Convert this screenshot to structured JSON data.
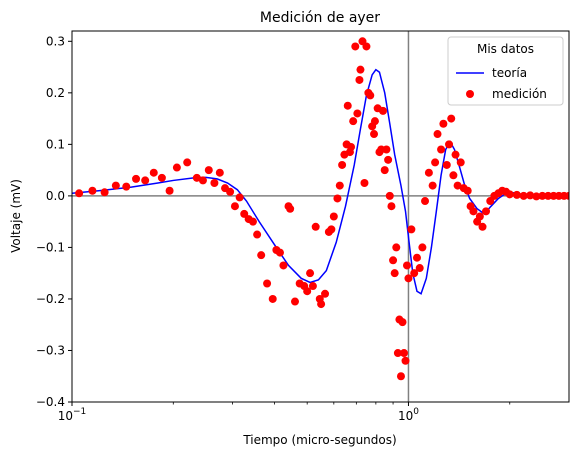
{
  "chart_data": {
    "type": "line",
    "title": "Medición de ayer",
    "xlabel": "Tiempo (micro-segundos)",
    "ylabel": "Voltaje (mV)",
    "x_scale": "log",
    "xlim": [
      0.1,
      3.0
    ],
    "ylim": [
      -0.4,
      0.32
    ],
    "grid": false,
    "x_ticks": [
      {
        "value": 0.1,
        "base": "10",
        "exp": "−1"
      },
      {
        "value": 1.0,
        "base": "10",
        "exp": "0"
      }
    ],
    "y_ticks": [
      {
        "value": 0.3,
        "label": "0.3"
      },
      {
        "value": 0.2,
        "label": "0.2"
      },
      {
        "value": 0.1,
        "label": "0.1"
      },
      {
        "value": 0.0,
        "label": "0.0"
      },
      {
        "value": -0.1,
        "label": "−0.1"
      },
      {
        "value": -0.2,
        "label": "−0.2"
      },
      {
        "value": -0.3,
        "label": "−0.3"
      },
      {
        "value": -0.4,
        "label": "−0.4"
      }
    ],
    "reference_lines": {
      "horizontal_y": 0.0,
      "vertical_x": 1.0,
      "color": "#808080"
    },
    "legend": {
      "title": "Mis datos",
      "placement": "top-right"
    },
    "series": [
      {
        "name": "teoría",
        "kind": "line",
        "color": "#0000ff",
        "points": [
          [
            0.1,
            0.005
          ],
          [
            0.12,
            0.01
          ],
          [
            0.15,
            0.017
          ],
          [
            0.18,
            0.025
          ],
          [
            0.2,
            0.03
          ],
          [
            0.23,
            0.035
          ],
          [
            0.25,
            0.036
          ],
          [
            0.27,
            0.033
          ],
          [
            0.29,
            0.025
          ],
          [
            0.31,
            0.012
          ],
          [
            0.33,
            -0.01
          ],
          [
            0.36,
            -0.05
          ],
          [
            0.4,
            -0.095
          ],
          [
            0.44,
            -0.135
          ],
          [
            0.48,
            -0.16
          ],
          [
            0.51,
            -0.168
          ],
          [
            0.54,
            -0.163
          ],
          [
            0.57,
            -0.145
          ],
          [
            0.61,
            -0.09
          ],
          [
            0.65,
            -0.02
          ],
          [
            0.69,
            0.06
          ],
          [
            0.72,
            0.13
          ],
          [
            0.75,
            0.195
          ],
          [
            0.78,
            0.235
          ],
          [
            0.8,
            0.245
          ],
          [
            0.82,
            0.24
          ],
          [
            0.85,
            0.2
          ],
          [
            0.88,
            0.14
          ],
          [
            0.91,
            0.08
          ],
          [
            0.95,
            0.02
          ],
          [
            0.98,
            -0.03
          ],
          [
            1.0,
            -0.08
          ],
          [
            1.03,
            -0.15
          ],
          [
            1.06,
            -0.185
          ],
          [
            1.09,
            -0.19
          ],
          [
            1.13,
            -0.16
          ],
          [
            1.17,
            -0.1
          ],
          [
            1.21,
            -0.03
          ],
          [
            1.25,
            0.04
          ],
          [
            1.29,
            0.09
          ],
          [
            1.33,
            0.105
          ],
          [
            1.37,
            0.09
          ],
          [
            1.42,
            0.055
          ],
          [
            1.47,
            0.02
          ],
          [
            1.52,
            -0.005
          ],
          [
            1.6,
            -0.025
          ],
          [
            1.68,
            -0.035
          ],
          [
            1.76,
            -0.02
          ],
          [
            1.85,
            -0.005
          ],
          [
            1.95,
            0.005
          ],
          [
            2.05,
            0.006
          ],
          [
            2.2,
            0.002
          ],
          [
            2.4,
            -0.001
          ],
          [
            2.7,
            0.0
          ],
          [
            3.0,
            0.0
          ]
        ]
      },
      {
        "name": "medición",
        "kind": "scatter",
        "color": "#ff0000",
        "points": [
          [
            0.105,
            0.005
          ],
          [
            0.115,
            0.01
          ],
          [
            0.125,
            0.007
          ],
          [
            0.135,
            0.02
          ],
          [
            0.145,
            0.018
          ],
          [
            0.155,
            0.033
          ],
          [
            0.165,
            0.03
          ],
          [
            0.175,
            0.045
          ],
          [
            0.185,
            0.035
          ],
          [
            0.195,
            0.01
          ],
          [
            0.205,
            0.055
          ],
          [
            0.22,
            0.065
          ],
          [
            0.235,
            0.035
          ],
          [
            0.245,
            0.03
          ],
          [
            0.255,
            0.05
          ],
          [
            0.265,
            0.025
          ],
          [
            0.275,
            0.045
          ],
          [
            0.285,
            0.015
          ],
          [
            0.295,
            0.008
          ],
          [
            0.305,
            -0.02
          ],
          [
            0.315,
            -0.003
          ],
          [
            0.325,
            -0.035
          ],
          [
            0.335,
            -0.045
          ],
          [
            0.345,
            -0.05
          ],
          [
            0.355,
            -0.075
          ],
          [
            0.365,
            -0.115
          ],
          [
            0.38,
            -0.17
          ],
          [
            0.395,
            -0.2
          ],
          [
            0.405,
            -0.105
          ],
          [
            0.415,
            -0.11
          ],
          [
            0.425,
            -0.135
          ],
          [
            0.44,
            -0.02
          ],
          [
            0.445,
            -0.025
          ],
          [
            0.46,
            -0.205
          ],
          [
            0.475,
            -0.17
          ],
          [
            0.49,
            -0.175
          ],
          [
            0.5,
            -0.185
          ],
          [
            0.51,
            -0.15
          ],
          [
            0.52,
            -0.175
          ],
          [
            0.53,
            -0.06
          ],
          [
            0.545,
            -0.2
          ],
          [
            0.55,
            -0.21
          ],
          [
            0.565,
            -0.19
          ],
          [
            0.58,
            -0.07
          ],
          [
            0.59,
            -0.065
          ],
          [
            0.6,
            -0.04
          ],
          [
            0.615,
            -0.005
          ],
          [
            0.625,
            0.02
          ],
          [
            0.635,
            0.06
          ],
          [
            0.645,
            0.08
          ],
          [
            0.655,
            0.1
          ],
          [
            0.66,
            0.175
          ],
          [
            0.67,
            0.085
          ],
          [
            0.675,
            0.095
          ],
          [
            0.685,
            0.145
          ],
          [
            0.695,
            0.29
          ],
          [
            0.705,
            0.16
          ],
          [
            0.715,
            0.225
          ],
          [
            0.72,
            0.245
          ],
          [
            0.73,
            0.3
          ],
          [
            0.74,
            0.025
          ],
          [
            0.75,
            0.29
          ],
          [
            0.76,
            0.2
          ],
          [
            0.77,
            0.195
          ],
          [
            0.78,
            0.135
          ],
          [
            0.79,
            0.12
          ],
          [
            0.795,
            0.145
          ],
          [
            0.81,
            0.17
          ],
          [
            0.82,
            0.085
          ],
          [
            0.83,
            0.09
          ],
          [
            0.84,
            0.165
          ],
          [
            0.85,
            0.05
          ],
          [
            0.86,
            0.09
          ],
          [
            0.87,
            0.07
          ],
          [
            0.88,
            0.0
          ],
          [
            0.89,
            -0.02
          ],
          [
            0.9,
            -0.125
          ],
          [
            0.91,
            -0.15
          ],
          [
            0.92,
            -0.1
          ],
          [
            0.93,
            -0.305
          ],
          [
            0.94,
            -0.24
          ],
          [
            0.95,
            -0.35
          ],
          [
            0.96,
            -0.245
          ],
          [
            0.97,
            -0.305
          ],
          [
            0.98,
            -0.32
          ],
          [
            0.99,
            -0.135
          ],
          [
            1.0,
            -0.16
          ],
          [
            1.02,
            -0.065
          ],
          [
            1.04,
            -0.15
          ],
          [
            1.06,
            -0.12
          ],
          [
            1.08,
            -0.14
          ],
          [
            1.1,
            -0.1
          ],
          [
            1.12,
            -0.01
          ],
          [
            1.15,
            0.045
          ],
          [
            1.18,
            0.02
          ],
          [
            1.2,
            0.065
          ],
          [
            1.22,
            0.12
          ],
          [
            1.25,
            0.09
          ],
          [
            1.27,
            0.14
          ],
          [
            1.3,
            0.06
          ],
          [
            1.32,
            0.1
          ],
          [
            1.34,
            0.15
          ],
          [
            1.36,
            0.04
          ],
          [
            1.38,
            0.08
          ],
          [
            1.4,
            0.02
          ],
          [
            1.43,
            0.065
          ],
          [
            1.46,
            0.015
          ],
          [
            1.5,
            0.01
          ],
          [
            1.53,
            -0.02
          ],
          [
            1.56,
            -0.03
          ],
          [
            1.6,
            -0.05
          ],
          [
            1.63,
            -0.04
          ],
          [
            1.66,
            -0.06
          ],
          [
            1.7,
            -0.03
          ],
          [
            1.75,
            -0.01
          ],
          [
            1.8,
            0.0
          ],
          [
            1.85,
            0.005
          ],
          [
            1.9,
            0.01
          ],
          [
            1.95,
            0.008
          ],
          [
            2.0,
            0.003
          ],
          [
            2.1,
            0.002
          ],
          [
            2.2,
            0.0
          ],
          [
            2.3,
            0.001
          ],
          [
            2.4,
            -0.001
          ],
          [
            2.5,
            0.0
          ],
          [
            2.6,
            0.0
          ],
          [
            2.7,
            0.0
          ],
          [
            2.8,
            0.0
          ],
          [
            2.9,
            0.0
          ],
          [
            3.0,
            0.0
          ]
        ]
      }
    ]
  }
}
